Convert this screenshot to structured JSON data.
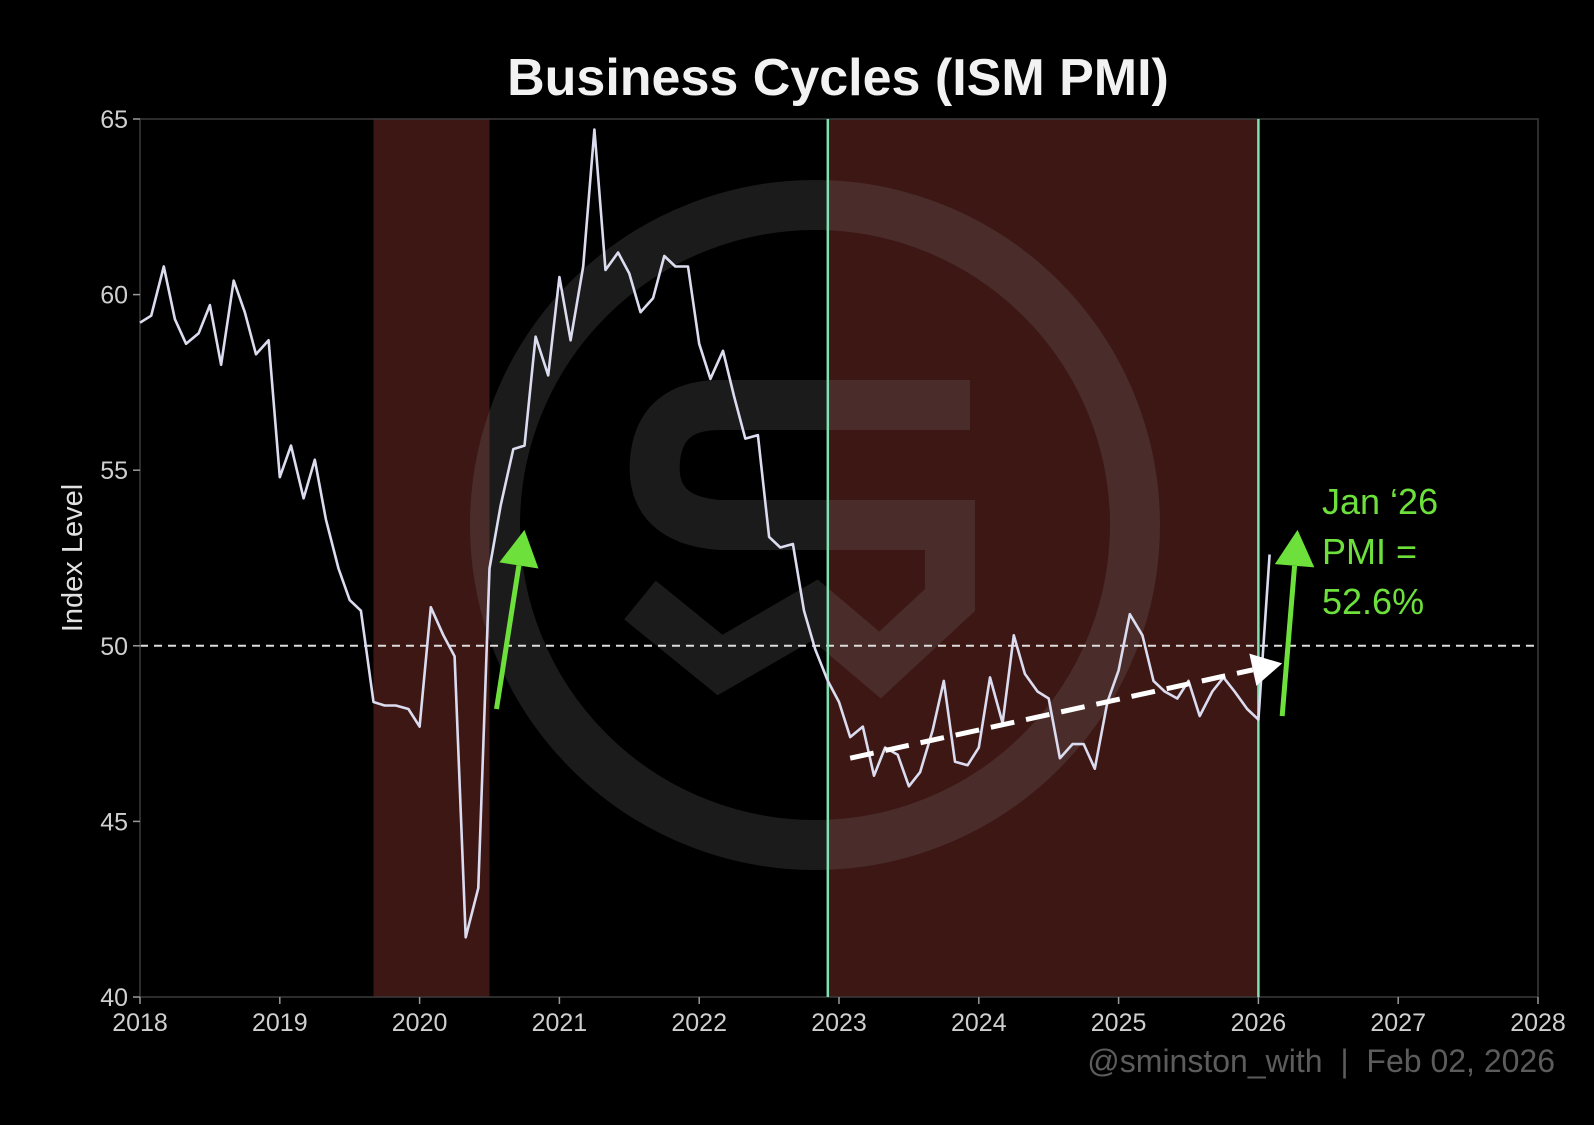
{
  "chart_data": {
    "type": "line",
    "title": "Business Cycles (ISM PMI)",
    "ylabel": "Index Level",
    "xlabel": "",
    "xlim": [
      2018,
      2028
    ],
    "ylim": [
      40,
      65
    ],
    "xticks": [
      "2018",
      "2019",
      "2020",
      "2021",
      "2022",
      "2023",
      "2024",
      "2025",
      "2026",
      "2027",
      "2028"
    ],
    "yticks": [
      "40",
      "45",
      "50",
      "55",
      "60",
      "65"
    ],
    "grid": false,
    "colors": {
      "background": "#000000",
      "line": "#dcdcf0",
      "shade": "#3d1714",
      "cycle_marker": "#7fe0b0",
      "reference": "#dddddd",
      "arrow_green": "#6ee03c",
      "trend": "#ffffff",
      "annotation": "#6ee03c",
      "credit": "#5c5c5c"
    },
    "reference_line": {
      "y": 50,
      "style": "dashed"
    },
    "shaded_regions": [
      {
        "x_start": 2019.67,
        "x_end": 2020.5
      },
      {
        "x_start": 2022.92,
        "x_end": 2026.0
      }
    ],
    "cycle_markers": [
      2022.92,
      2026.0
    ],
    "series": [
      {
        "points": [
          [
            2018.0,
            59.2
          ],
          [
            2018.08,
            59.4
          ],
          [
            2018.17,
            60.8
          ],
          [
            2018.25,
            59.3
          ],
          [
            2018.33,
            58.6
          ],
          [
            2018.42,
            58.9
          ],
          [
            2018.5,
            59.7
          ],
          [
            2018.58,
            58.0
          ],
          [
            2018.67,
            60.4
          ],
          [
            2018.75,
            59.5
          ],
          [
            2018.83,
            58.3
          ],
          [
            2018.92,
            58.7
          ],
          [
            2019.0,
            54.8
          ],
          [
            2019.08,
            55.7
          ],
          [
            2019.17,
            54.2
          ],
          [
            2019.25,
            55.3
          ],
          [
            2019.33,
            53.6
          ],
          [
            2019.42,
            52.2
          ],
          [
            2019.5,
            51.3
          ],
          [
            2019.58,
            51.0
          ],
          [
            2019.67,
            48.4
          ],
          [
            2019.75,
            48.3
          ],
          [
            2019.83,
            48.3
          ],
          [
            2019.92,
            48.2
          ],
          [
            2020.0,
            47.7
          ],
          [
            2020.08,
            51.1
          ],
          [
            2020.17,
            50.3
          ],
          [
            2020.25,
            49.7
          ],
          [
            2020.33,
            41.7
          ],
          [
            2020.42,
            43.1
          ],
          [
            2020.5,
            52.2
          ],
          [
            2020.58,
            54.0
          ],
          [
            2020.67,
            55.6
          ],
          [
            2020.75,
            55.7
          ],
          [
            2020.83,
            58.8
          ],
          [
            2020.92,
            57.7
          ],
          [
            2021.0,
            60.5
          ],
          [
            2021.08,
            58.7
          ],
          [
            2021.17,
            60.8
          ],
          [
            2021.25,
            64.7
          ],
          [
            2021.33,
            60.7
          ],
          [
            2021.42,
            61.2
          ],
          [
            2021.5,
            60.6
          ],
          [
            2021.58,
            59.5
          ],
          [
            2021.67,
            59.9
          ],
          [
            2021.75,
            61.1
          ],
          [
            2021.83,
            60.8
          ],
          [
            2021.92,
            60.8
          ],
          [
            2022.0,
            58.6
          ],
          [
            2022.08,
            57.6
          ],
          [
            2022.17,
            58.4
          ],
          [
            2022.25,
            57.1
          ],
          [
            2022.33,
            55.9
          ],
          [
            2022.42,
            56.0
          ],
          [
            2022.5,
            53.1
          ],
          [
            2022.58,
            52.8
          ],
          [
            2022.67,
            52.9
          ],
          [
            2022.75,
            51.0
          ],
          [
            2022.83,
            49.9
          ],
          [
            2022.92,
            49.0
          ],
          [
            2023.0,
            48.4
          ],
          [
            2023.08,
            47.4
          ],
          [
            2023.17,
            47.7
          ],
          [
            2023.25,
            46.3
          ],
          [
            2023.33,
            47.1
          ],
          [
            2023.42,
            46.9
          ],
          [
            2023.5,
            46.0
          ],
          [
            2023.58,
            46.4
          ],
          [
            2023.67,
            47.6
          ],
          [
            2023.75,
            49.0
          ],
          [
            2023.83,
            46.7
          ],
          [
            2023.92,
            46.6
          ],
          [
            2024.0,
            47.1
          ],
          [
            2024.08,
            49.1
          ],
          [
            2024.17,
            47.8
          ],
          [
            2024.25,
            50.3
          ],
          [
            2024.33,
            49.2
          ],
          [
            2024.42,
            48.7
          ],
          [
            2024.5,
            48.5
          ],
          [
            2024.58,
            46.8
          ],
          [
            2024.67,
            47.2
          ],
          [
            2024.75,
            47.2
          ],
          [
            2024.83,
            46.5
          ],
          [
            2024.92,
            48.4
          ],
          [
            2025.0,
            49.3
          ],
          [
            2025.08,
            50.9
          ],
          [
            2025.17,
            50.3
          ],
          [
            2025.25,
            49.0
          ],
          [
            2025.33,
            48.7
          ],
          [
            2025.42,
            48.5
          ],
          [
            2025.5,
            49.0
          ],
          [
            2025.58,
            48.0
          ],
          [
            2025.67,
            48.7
          ],
          [
            2025.75,
            49.1
          ],
          [
            2025.83,
            48.7
          ],
          [
            2025.92,
            48.2
          ],
          [
            2026.0,
            47.9
          ],
          [
            2026.08,
            52.6
          ]
        ]
      }
    ],
    "trend_arrow": {
      "from": [
        2023.08,
        46.8
      ],
      "to": [
        2026.17,
        49.5
      ]
    },
    "green_arrows": [
      {
        "from": [
          2020.55,
          48.2
        ],
        "to": [
          2020.75,
          53.3
        ]
      },
      {
        "from": [
          2026.17,
          48.0
        ],
        "to": [
          2026.28,
          53.3
        ]
      }
    ],
    "annotation": {
      "lines": [
        "Jan ‘26",
        "PMI =",
        "52.6%"
      ]
    },
    "credit": "@sminston_with  |  Feb 02, 2026"
  }
}
